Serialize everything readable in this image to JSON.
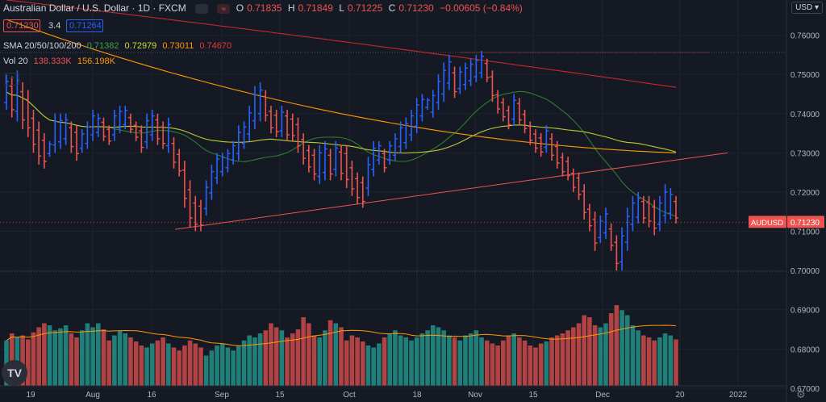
{
  "header": {
    "title": "Australian Dollar / U.S. Dollar · 1D · FXCM",
    "open_label": "O",
    "open": "0.71835",
    "high_label": "H",
    "high": "0.71849",
    "low_label": "L",
    "low": "0.71225",
    "close_label": "C",
    "close": "0.71230",
    "change": "−0.00605 (−0.84%)",
    "bid": "0.71230",
    "spread": "3.4",
    "ask": "0.71264",
    "currency": "USD",
    "sma_label": "SMA 20/50/100/200",
    "sma_values": [
      "0.71382",
      "0.72979",
      "0.73011",
      "0.74670"
    ],
    "vol_label": "Vol 20",
    "vol_values": [
      "138.333K",
      "156.198K"
    ],
    "logo": "TV"
  },
  "colors": {
    "background": "#151924",
    "up": "#2962ff",
    "down": "#ef5350",
    "vol_up": "#26a69a",
    "vol_down": "#ef5350",
    "sma20": "#2e7d32",
    "sma50": "#cddc39",
    "sma100": "#ff9800",
    "sma200": "#c62828",
    "trendline": "#ef5350",
    "grid": "#1e222d",
    "axis_text": "#b2b5be"
  },
  "chart_data": {
    "type": "ohlc",
    "y_ticks": [
      "0.76000",
      "0.75000",
      "0.74000",
      "0.73000",
      "0.72000",
      "0.71000",
      "0.70000",
      "0.69000",
      "0.68000",
      "0.67000"
    ],
    "ylim": [
      0.6675,
      0.7665
    ],
    "x_ticks": [
      "19",
      "Aug",
      "16",
      "Sep",
      "15",
      "Oct",
      "18",
      "Nov",
      "15",
      "Dec",
      "20",
      "2022"
    ],
    "last_price_label": "AUDUSD",
    "last_price": "0.71230",
    "last_price_value": 0.7123,
    "dotted_levels": [
      0.7556,
      0.6998
    ],
    "bars_highlow": [
      [
        0.75,
        0.741
      ],
      [
        0.749,
        0.739
      ],
      [
        0.751,
        0.738
      ],
      [
        0.748,
        0.736
      ],
      [
        0.746,
        0.734
      ],
      [
        0.741,
        0.73
      ],
      [
        0.738,
        0.727
      ],
      [
        0.735,
        0.726
      ],
      [
        0.733,
        0.729
      ],
      [
        0.74,
        0.73
      ],
      [
        0.74,
        0.731
      ],
      [
        0.74,
        0.732
      ],
      [
        0.738,
        0.73
      ],
      [
        0.737,
        0.728
      ],
      [
        0.736,
        0.73
      ],
      [
        0.738,
        0.731
      ],
      [
        0.741,
        0.733
      ],
      [
        0.74,
        0.734
      ],
      [
        0.739,
        0.733
      ],
      [
        0.737,
        0.732
      ],
      [
        0.741,
        0.733
      ],
      [
        0.742,
        0.735
      ],
      [
        0.742,
        0.736
      ],
      [
        0.74,
        0.735
      ],
      [
        0.738,
        0.733
      ],
      [
        0.737,
        0.73
      ],
      [
        0.74,
        0.731
      ],
      [
        0.741,
        0.733
      ],
      [
        0.74,
        0.732
      ],
      [
        0.738,
        0.731
      ],
      [
        0.739,
        0.73
      ],
      [
        0.734,
        0.726
      ],
      [
        0.731,
        0.724
      ],
      [
        0.728,
        0.716
      ],
      [
        0.723,
        0.711
      ],
      [
        0.719,
        0.71
      ],
      [
        0.718,
        0.71
      ],
      [
        0.723,
        0.714
      ],
      [
        0.727,
        0.718
      ],
      [
        0.73,
        0.722
      ],
      [
        0.73,
        0.724
      ],
      [
        0.731,
        0.725
      ],
      [
        0.733,
        0.727
      ],
      [
        0.737,
        0.728
      ],
      [
        0.738,
        0.731
      ],
      [
        0.742,
        0.733
      ],
      [
        0.747,
        0.736
      ],
      [
        0.748,
        0.738
      ],
      [
        0.746,
        0.738
      ],
      [
        0.742,
        0.735
      ],
      [
        0.741,
        0.734
      ],
      [
        0.742,
        0.734
      ],
      [
        0.741,
        0.733
      ],
      [
        0.74,
        0.733
      ],
      [
        0.739,
        0.73
      ],
      [
        0.735,
        0.727
      ],
      [
        0.732,
        0.725
      ],
      [
        0.731,
        0.723
      ],
      [
        0.732,
        0.722
      ],
      [
        0.733,
        0.723
      ],
      [
        0.731,
        0.723
      ],
      [
        0.733,
        0.724
      ],
      [
        0.732,
        0.723
      ],
      [
        0.732,
        0.721
      ],
      [
        0.728,
        0.719
      ],
      [
        0.725,
        0.717
      ],
      [
        0.724,
        0.716
      ],
      [
        0.729,
        0.719
      ],
      [
        0.733,
        0.724
      ],
      [
        0.733,
        0.727
      ],
      [
        0.731,
        0.725
      ],
      [
        0.733,
        0.727
      ],
      [
        0.735,
        0.728
      ],
      [
        0.738,
        0.73
      ],
      [
        0.739,
        0.731
      ],
      [
        0.741,
        0.733
      ],
      [
        0.744,
        0.735
      ],
      [
        0.745,
        0.738
      ],
      [
        0.744,
        0.741
      ],
      [
        0.746,
        0.739
      ],
      [
        0.75,
        0.741
      ],
      [
        0.753,
        0.743
      ],
      [
        0.755,
        0.746
      ],
      [
        0.752,
        0.744
      ],
      [
        0.752,
        0.745
      ],
      [
        0.753,
        0.746
      ],
      [
        0.754,
        0.747
      ],
      [
        0.755,
        0.748
      ],
      [
        0.756,
        0.749
      ],
      [
        0.754,
        0.748
      ],
      [
        0.751,
        0.743
      ],
      [
        0.746,
        0.74
      ],
      [
        0.744,
        0.738
      ],
      [
        0.742,
        0.736
      ],
      [
        0.745,
        0.737
      ],
      [
        0.744,
        0.737
      ],
      [
        0.741,
        0.735
      ],
      [
        0.738,
        0.732
      ],
      [
        0.736,
        0.73
      ],
      [
        0.735,
        0.729
      ],
      [
        0.737,
        0.73
      ],
      [
        0.735,
        0.728
      ],
      [
        0.733,
        0.726
      ],
      [
        0.73,
        0.724
      ],
      [
        0.729,
        0.723
      ],
      [
        0.726,
        0.72
      ],
      [
        0.725,
        0.718
      ],
      [
        0.722,
        0.713
      ],
      [
        0.717,
        0.71
      ],
      [
        0.715,
        0.705
      ],
      [
        0.714,
        0.707
      ],
      [
        0.716,
        0.708
      ],
      [
        0.712,
        0.705
      ],
      [
        0.709,
        0.7
      ],
      [
        0.711,
        0.7
      ],
      [
        0.716,
        0.705
      ],
      [
        0.719,
        0.71
      ],
      [
        0.72,
        0.712
      ],
      [
        0.719,
        0.712
      ],
      [
        0.719,
        0.711
      ],
      [
        0.718,
        0.709
      ],
      [
        0.719,
        0.71
      ],
      [
        0.722,
        0.712
      ],
      [
        0.721,
        0.713
      ],
      [
        0.719,
        0.712
      ]
    ],
    "volume_relative": [
      0.45,
      0.52,
      0.48,
      0.5,
      0.46,
      0.53,
      0.58,
      0.62,
      0.6,
      0.55,
      0.57,
      0.6,
      0.52,
      0.48,
      0.55,
      0.62,
      0.58,
      0.62,
      0.56,
      0.45,
      0.5,
      0.55,
      0.52,
      0.48,
      0.44,
      0.4,
      0.38,
      0.42,
      0.45,
      0.48,
      0.42,
      0.38,
      0.35,
      0.4,
      0.45,
      0.42,
      0.38,
      0.3,
      0.35,
      0.4,
      0.42,
      0.38,
      0.35,
      0.4,
      0.45,
      0.5,
      0.48,
      0.52,
      0.55,
      0.62,
      0.58,
      0.55,
      0.48,
      0.52,
      0.56,
      0.68,
      0.62,
      0.5,
      0.48,
      0.55,
      0.65,
      0.62,
      0.58,
      0.45,
      0.5,
      0.48,
      0.44,
      0.4,
      0.38,
      0.42,
      0.48,
      0.52,
      0.55,
      0.5,
      0.48,
      0.45,
      0.48,
      0.52,
      0.55,
      0.6,
      0.58,
      0.55,
      0.5,
      0.48,
      0.45,
      0.5,
      0.52,
      0.55,
      0.48,
      0.45,
      0.42,
      0.4,
      0.45,
      0.5,
      0.52,
      0.48,
      0.45,
      0.4,
      0.38,
      0.42,
      0.44,
      0.48,
      0.5,
      0.52,
      0.55,
      0.58,
      0.62,
      0.7,
      0.68,
      0.6,
      0.58,
      0.62,
      0.72,
      0.8,
      0.75,
      0.7,
      0.6,
      0.55,
      0.5,
      0.48,
      0.45,
      0.48,
      0.52,
      0.5,
      0.46
    ]
  }
}
